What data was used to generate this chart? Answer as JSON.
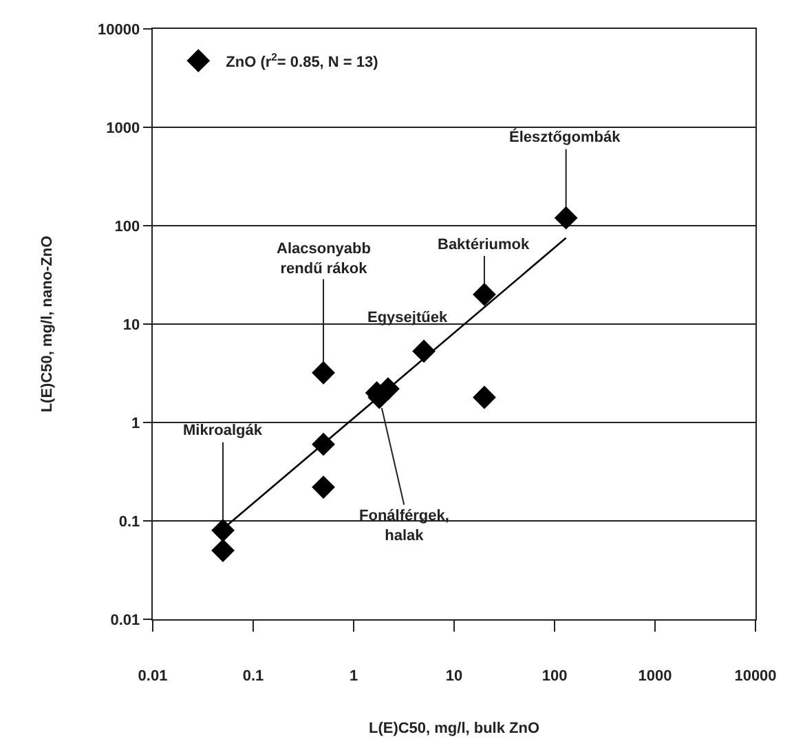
{
  "chart_data": {
    "type": "scatter",
    "xlabel": "L(E)C50, mg/l, bulk ZnO",
    "ylabel": "L(E)C50, mg/l, nano-ZnO",
    "log": "xy",
    "grid": "y",
    "legend": "top left",
    "marker": "diamond",
    "xlim": [
      0.01,
      10000
    ],
    "ylim": [
      0.01,
      10000
    ],
    "xticks": [
      0.01,
      0.1,
      1,
      10,
      100,
      1000,
      10000
    ],
    "yticks": [
      0.01,
      0.1,
      1,
      10,
      100,
      1000,
      10000
    ],
    "series": [
      {
        "name": "ZnO (r$^{2}$= 0.85, N = 13)",
        "color": "#000000",
        "x": [
          0.05,
          0.05,
          0.5,
          0.5,
          0.5,
          1.7,
          1.8,
          2.2,
          5,
          20,
          20,
          130
        ],
        "values": [
          0.08,
          0.05,
          3.2,
          0.6,
          0.22,
          2.0,
          1.8,
          2.2,
          5.3,
          20,
          1.8,
          120
        ]
      },
      {
        "type": "line",
        "marker": "none",
        "color": "#000000",
        "x": [
          0.055,
          130
        ],
        "values": [
          0.09,
          75
        ]
      }
    ],
    "annotations": [
      {
        "text": "Élesztőgombák",
        "x": 130,
        "y": 120
      },
      {
        "text": "Baktériumok",
        "x": 20,
        "y": 20
      },
      {
        "text": "Alacsonyabb\nrendű rákok",
        "x": 0.5,
        "y": 3.2
      },
      {
        "text": "Egysejtűek",
        "x": 5,
        "y": 5.3
      },
      {
        "text": "Mikroalgák",
        "x": 0.05,
        "y": 0.08
      },
      {
        "text": "Fonálférgek,\nhalak",
        "x": 1.8,
        "y": 1.8
      }
    ]
  }
}
